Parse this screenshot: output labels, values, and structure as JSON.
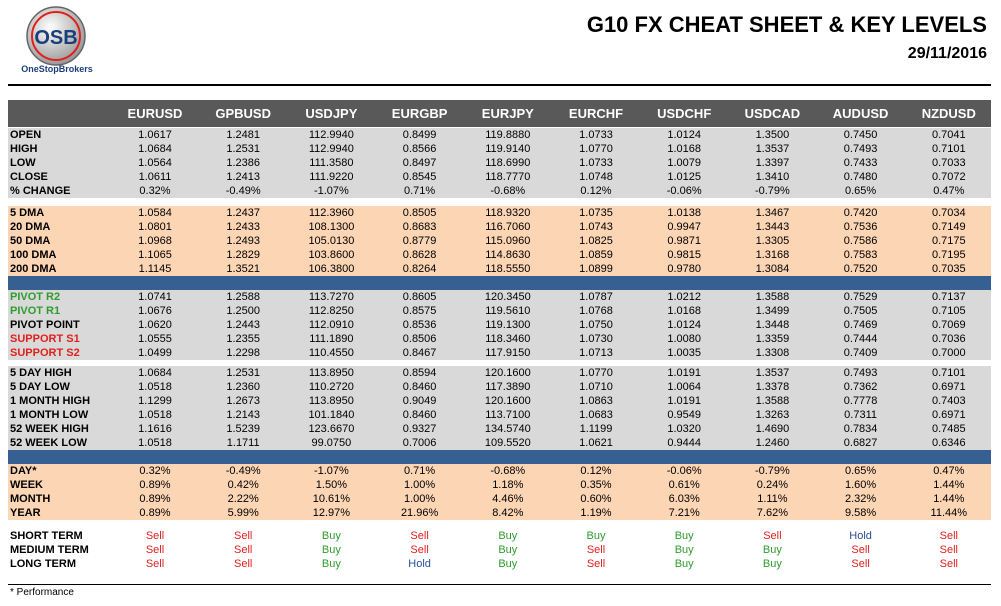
{
  "header": {
    "logo": "OSB",
    "brand": "OneStopBrokers",
    "title": "G10 FX CHEAT SHEET & KEY LEVELS",
    "date": "29/11/2016"
  },
  "table": {
    "columns": [
      "EURUSD",
      "GPBUSD",
      "USDJPY",
      "EURGBP",
      "EURJPY",
      "EURCHF",
      "USDCHF",
      "USDCAD",
      "AUDUSD",
      "NZDUSD"
    ],
    "signal_colors": {
      "Sell": "#e0201c",
      "Buy": "#2e9c2e",
      "Hold": "#2a4f9a"
    },
    "sections": [
      {
        "rows": [
          {
            "label": "OPEN",
            "values": [
              "1.0617",
              "1.2481",
              "112.9940",
              "0.8499",
              "119.8880",
              "1.0733",
              "1.0124",
              "1.3500",
              "0.7450",
              "0.7041"
            ]
          },
          {
            "label": "HIGH",
            "values": [
              "1.0684",
              "1.2531",
              "112.9940",
              "0.8566",
              "119.9140",
              "1.0770",
              "1.0168",
              "1.3537",
              "0.7493",
              "0.7101"
            ]
          },
          {
            "label": "LOW",
            "values": [
              "1.0564",
              "1.2386",
              "111.3580",
              "0.8497",
              "118.6990",
              "1.0733",
              "1.0079",
              "1.3397",
              "0.7433",
              "0.7033"
            ]
          },
          {
            "label": "CLOSE",
            "values": [
              "1.0611",
              "1.2413",
              "111.9220",
              "0.8545",
              "118.7770",
              "1.0748",
              "1.0125",
              "1.3410",
              "0.7480",
              "0.7072"
            ]
          },
          {
            "label": "% CHANGE",
            "values": [
              "0.32%",
              "-0.49%",
              "-1.07%",
              "0.71%",
              "-0.68%",
              "0.12%",
              "-0.06%",
              "-0.79%",
              "0.65%",
              "0.47%"
            ]
          }
        ]
      },
      {
        "rows": [
          {
            "label": "5 DMA",
            "values": [
              "1.0584",
              "1.2437",
              "112.3960",
              "0.8505",
              "118.9320",
              "1.0735",
              "1.0138",
              "1.3467",
              "0.7420",
              "0.7034"
            ]
          },
          {
            "label": "20 DMA",
            "values": [
              "1.0801",
              "1.2433",
              "108.1300",
              "0.8683",
              "116.7060",
              "1.0743",
              "0.9947",
              "1.3443",
              "0.7536",
              "0.7149"
            ]
          },
          {
            "label": "50 DMA",
            "values": [
              "1.0968",
              "1.2493",
              "105.0130",
              "0.8779",
              "115.0960",
              "1.0825",
              "0.9871",
              "1.3305",
              "0.7586",
              "0.7175"
            ]
          },
          {
            "label": "100 DMA",
            "values": [
              "1.1065",
              "1.2829",
              "103.8600",
              "0.8628",
              "114.8630",
              "1.0859",
              "0.9815",
              "1.3168",
              "0.7583",
              "0.7195"
            ]
          },
          {
            "label": "200 DMA",
            "values": [
              "1.1145",
              "1.3521",
              "106.3800",
              "0.8264",
              "118.5550",
              "1.0899",
              "0.9780",
              "1.3084",
              "0.7520",
              "0.7035"
            ]
          }
        ]
      },
      {
        "rows": [
          {
            "label": "PIVOT R2",
            "color": "#2e9c2e",
            "values": [
              "1.0741",
              "1.2588",
              "113.7270",
              "0.8605",
              "120.3450",
              "1.0787",
              "1.0212",
              "1.3588",
              "0.7529",
              "0.7137"
            ]
          },
          {
            "label": "PIVOT R1",
            "color": "#2e9c2e",
            "values": [
              "1.0676",
              "1.2500",
              "112.8250",
              "0.8575",
              "119.5610",
              "1.0768",
              "1.0168",
              "1.3499",
              "0.7505",
              "0.7105"
            ]
          },
          {
            "label": "PIVOT POINT",
            "values": [
              "1.0620",
              "1.2443",
              "112.0910",
              "0.8536",
              "119.1300",
              "1.0750",
              "1.0124",
              "1.3448",
              "0.7469",
              "0.7069"
            ]
          },
          {
            "label": "SUPPORT S1",
            "color": "#e0201c",
            "values": [
              "1.0555",
              "1.2355",
              "111.1890",
              "0.8506",
              "118.3460",
              "1.0730",
              "1.0080",
              "1.3359",
              "0.7444",
              "0.7036"
            ]
          },
          {
            "label": "SUPPORT S2",
            "color": "#e0201c",
            "values": [
              "1.0499",
              "1.2298",
              "110.4550",
              "0.8467",
              "117.9150",
              "1.0713",
              "1.0035",
              "1.3308",
              "0.7409",
              "0.7000"
            ]
          }
        ]
      },
      {
        "rows": [
          {
            "label": "5 DAY HIGH",
            "values": [
              "1.0684",
              "1.2531",
              "113.8950",
              "0.8594",
              "120.1600",
              "1.0770",
              "1.0191",
              "1.3537",
              "0.7493",
              "0.7101"
            ]
          },
          {
            "label": "5 DAY LOW",
            "values": [
              "1.0518",
              "1.2360",
              "110.2720",
              "0.8460",
              "117.3890",
              "1.0710",
              "1.0064",
              "1.3378",
              "0.7362",
              "0.6971"
            ]
          },
          {
            "label": "1 MONTH HIGH",
            "values": [
              "1.1299",
              "1.2673",
              "113.8950",
              "0.9049",
              "120.1600",
              "1.0863",
              "1.0191",
              "1.3588",
              "0.7778",
              "0.7403"
            ]
          },
          {
            "label": "1 MONTH LOW",
            "values": [
              "1.0518",
              "1.2143",
              "101.1840",
              "0.8460",
              "113.7100",
              "1.0683",
              "0.9549",
              "1.3263",
              "0.7311",
              "0.6971"
            ]
          },
          {
            "label": "52 WEEK HIGH",
            "values": [
              "1.1616",
              "1.5239",
              "123.6670",
              "0.9327",
              "134.5740",
              "1.1199",
              "1.0320",
              "1.4690",
              "0.7834",
              "0.7485"
            ]
          },
          {
            "label": "52 WEEK LOW",
            "values": [
              "1.0518",
              "1.1711",
              "99.0750",
              "0.7006",
              "109.5520",
              "1.0621",
              "0.9444",
              "1.2460",
              "0.6827",
              "0.6346"
            ]
          }
        ]
      },
      {
        "rows": [
          {
            "label": "DAY*",
            "values": [
              "0.32%",
              "-0.49%",
              "-1.07%",
              "0.71%",
              "-0.68%",
              "0.12%",
              "-0.06%",
              "-0.79%",
              "0.65%",
              "0.47%"
            ]
          },
          {
            "label": "WEEK",
            "values": [
              "0.89%",
              "0.42%",
              "1.50%",
              "1.00%",
              "1.18%",
              "0.35%",
              "0.61%",
              "0.24%",
              "1.60%",
              "1.44%"
            ]
          },
          {
            "label": "MONTH",
            "values": [
              "0.89%",
              "2.22%",
              "10.61%",
              "1.00%",
              "4.46%",
              "0.60%",
              "6.03%",
              "1.11%",
              "2.32%",
              "1.44%"
            ]
          },
          {
            "label": "YEAR",
            "values": [
              "0.89%",
              "5.99%",
              "12.97%",
              "21.96%",
              "8.42%",
              "1.19%",
              "7.21%",
              "7.62%",
              "9.58%",
              "11.44%"
            ]
          }
        ]
      },
      {
        "rows": [
          {
            "label": "SHORT TERM",
            "values": [
              "Sell",
              "Sell",
              "Buy",
              "Sell",
              "Buy",
              "Buy",
              "Buy",
              "Sell",
              "Hold",
              "Sell"
            ]
          },
          {
            "label": "MEDIUM TERM",
            "values": [
              "Sell",
              "Sell",
              "Buy",
              "Sell",
              "Buy",
              "Sell",
              "Buy",
              "Buy",
              "Sell",
              "Sell"
            ]
          },
          {
            "label": "LONG TERM",
            "values": [
              "Sell",
              "Sell",
              "Buy",
              "Hold",
              "Buy",
              "Sell",
              "Buy",
              "Buy",
              "Sell",
              "Sell"
            ]
          }
        ]
      }
    ]
  },
  "footnote": "* Performance"
}
